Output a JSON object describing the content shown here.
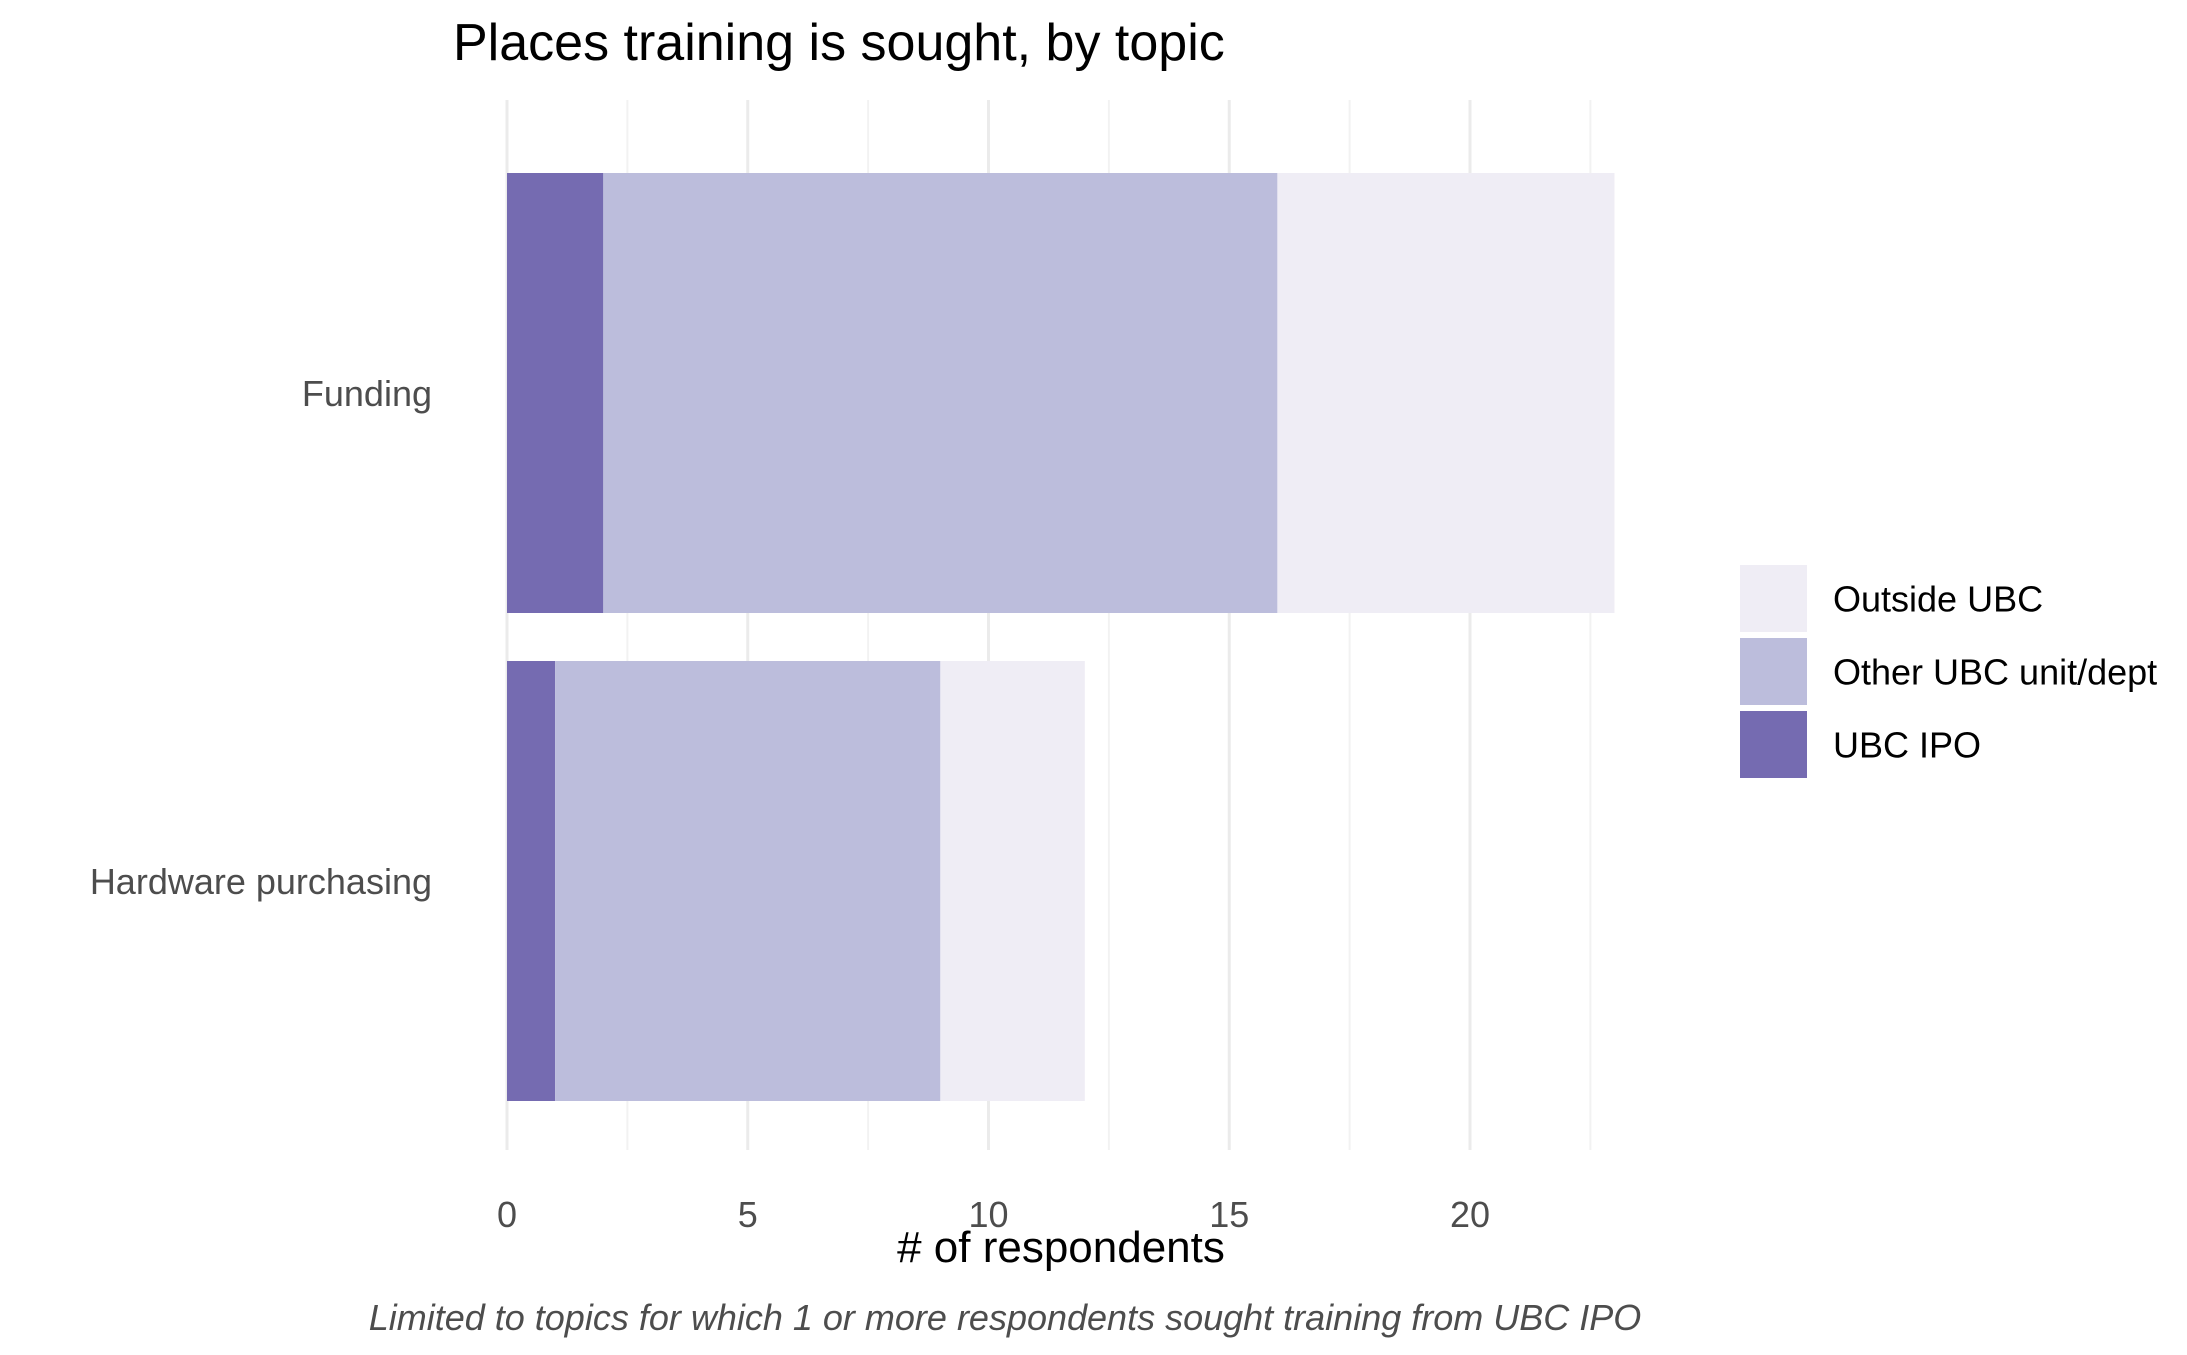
{
  "chart_data": {
    "type": "bar",
    "orientation": "horizontal",
    "stacked": true,
    "title": "Places training is sought, by topic",
    "xlabel": "# of respondents",
    "ylabel": "",
    "caption": "Limited to topics for which 1 or more respondents sought training from UBC IPO",
    "categories": [
      "Funding",
      "Hardware purchasing"
    ],
    "series": [
      {
        "name": "UBC IPO",
        "values": [
          2,
          1
        ],
        "color": "#756bb1"
      },
      {
        "name": "Other UBC unit/dept",
        "values": [
          14,
          8
        ],
        "color": "#bcbddc"
      },
      {
        "name": "Outside UBC",
        "values": [
          7,
          3
        ],
        "color": "#efedf5"
      }
    ],
    "legend_order": [
      "Outside UBC",
      "Other UBC unit/dept",
      "UBC IPO"
    ],
    "xlim": [
      0,
      23
    ],
    "xticks": [
      0,
      5,
      10,
      15,
      20
    ],
    "xtick_labels": [
      "0",
      "5",
      "10",
      "15",
      "20"
    ],
    "grid": true,
    "legend_position": "right"
  }
}
